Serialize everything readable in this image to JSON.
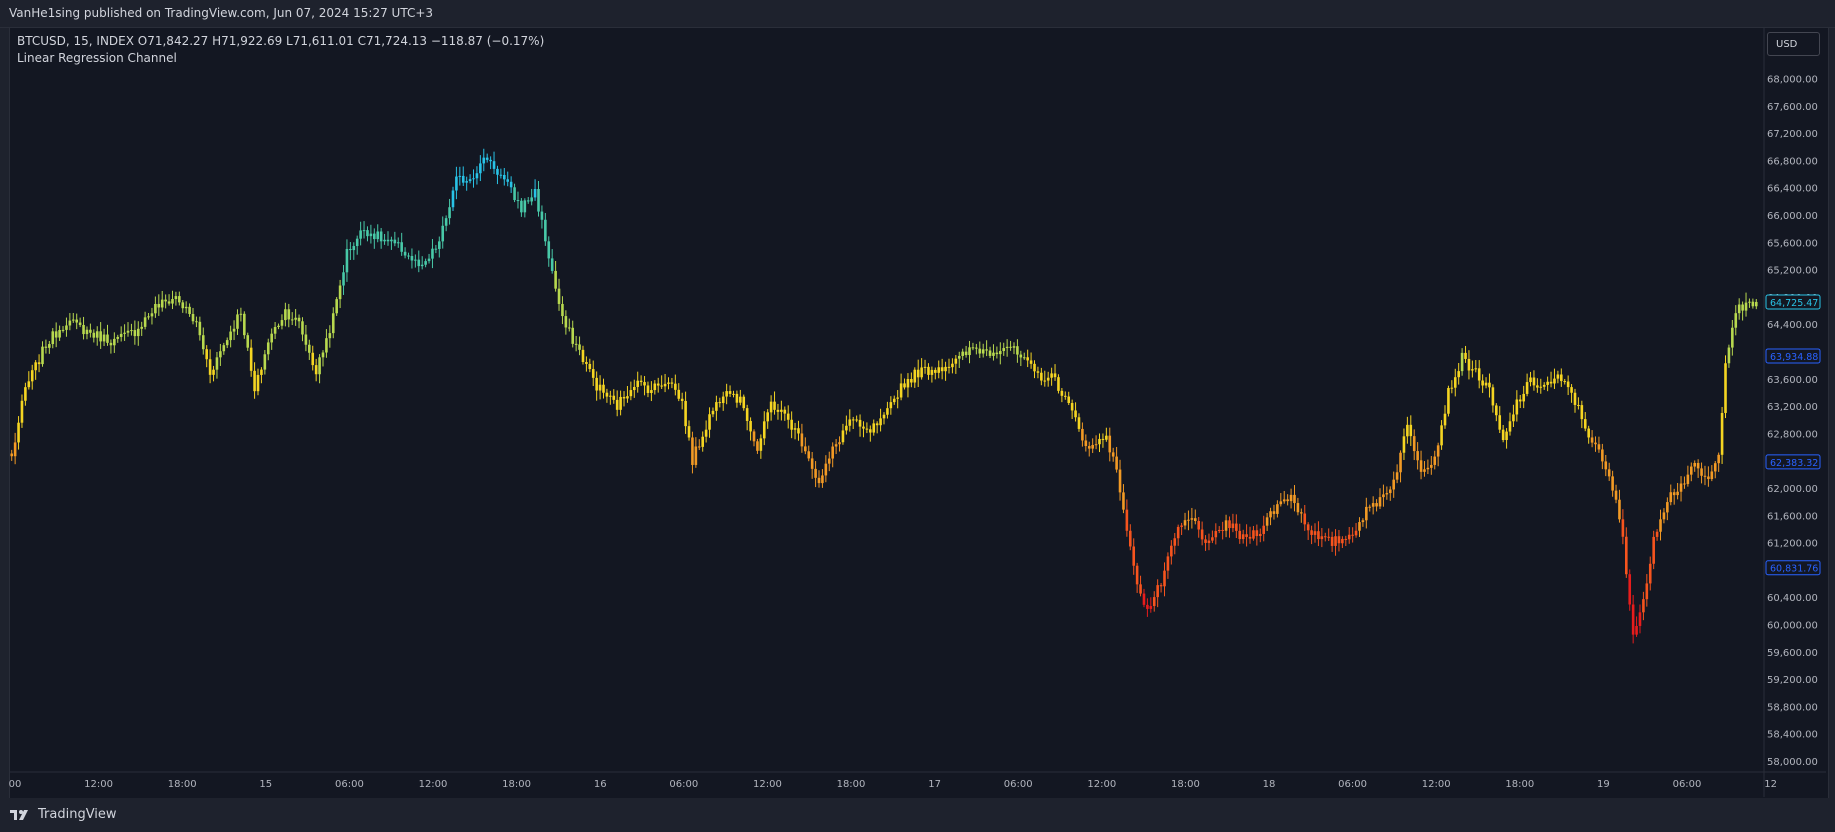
{
  "header": {
    "published_text": "VanHe1sing published on TradingView.com, Jun 07, 2024 15:27 UTC+3"
  },
  "legend": {
    "symbol_line": "BTCUSD, 15, INDEX  O71,842.27  H71,922.69  L71,611.01  C71,724.13  −118.87 (−0.17%)",
    "indicator": "Linear Regression Channel"
  },
  "currency_button": "USD",
  "footer": {
    "brand": "TradingView"
  },
  "colors": {
    "background": "#131722",
    "frame": "#1e222d",
    "text": "#d1d4dc",
    "palette_low_to_high": [
      "#e81c1c",
      "#f7541e",
      "#f29a25",
      "#f5d522",
      "#b8d94f",
      "#48c9a8",
      "#29c3e6"
    ]
  },
  "chart_data": {
    "type": "candlestick",
    "symbol": "BTCUSD",
    "interval": "15",
    "ylim": [
      57800,
      68400
    ],
    "y_ticks": [
      58000,
      58400,
      58800,
      59200,
      59600,
      60000,
      60400,
      60800,
      61200,
      61600,
      62000,
      62400,
      62800,
      63200,
      63600,
      64000,
      64400,
      64800,
      65200,
      65600,
      66000,
      66400,
      66800,
      67200,
      67600,
      68000
    ],
    "x_ticks": [
      "00",
      "12:00",
      "18:00",
      "15",
      "06:00",
      "12:00",
      "18:00",
      "16",
      "06:00",
      "12:00",
      "18:00",
      "17",
      "06:00",
      "12:00",
      "18:00",
      "18",
      "06:00",
      "12:00",
      "18:00",
      "19",
      "06:00",
      "12"
    ],
    "price_labels": [
      {
        "value": "64,725.47",
        "price": 64725.47,
        "color": "#29c3e6"
      },
      {
        "value": "63,934.88",
        "price": 63934.88,
        "color": "#2962ff"
      },
      {
        "value": "62,383.32",
        "price": 62383.32,
        "color": "#2962ff"
      },
      {
        "value": "60,831.76",
        "price": 60831.76,
        "color": "#2962ff"
      }
    ],
    "path": [
      [
        0,
        62450
      ],
      [
        4,
        63450
      ],
      [
        10,
        64100
      ],
      [
        16,
        64450
      ],
      [
        24,
        64250
      ],
      [
        30,
        64150
      ],
      [
        36,
        64300
      ],
      [
        42,
        64650
      ],
      [
        48,
        64800
      ],
      [
        54,
        64400
      ],
      [
        58,
        63700
      ],
      [
        62,
        64100
      ],
      [
        67,
        64600
      ],
      [
        71,
        63400
      ],
      [
        75,
        64150
      ],
      [
        80,
        64600
      ],
      [
        84,
        64400
      ],
      [
        89,
        63700
      ],
      [
        94,
        64500
      ],
      [
        98,
        65450
      ],
      [
        103,
        65800
      ],
      [
        108,
        65650
      ],
      [
        114,
        65500
      ],
      [
        120,
        65200
      ],
      [
        125,
        65600
      ],
      [
        130,
        66500
      ],
      [
        134,
        66550
      ],
      [
        139,
        66850
      ],
      [
        144,
        66500
      ],
      [
        149,
        66100
      ],
      [
        153,
        66350
      ],
      [
        157,
        65400
      ],
      [
        161,
        64450
      ],
      [
        166,
        64000
      ],
      [
        171,
        63500
      ],
      [
        177,
        63200
      ],
      [
        182,
        63550
      ],
      [
        187,
        63450
      ],
      [
        192,
        63600
      ],
      [
        196,
        63250
      ],
      [
        199,
        62400
      ],
      [
        204,
        63050
      ],
      [
        209,
        63500
      ],
      [
        214,
        63200
      ],
      [
        218,
        62550
      ],
      [
        222,
        63250
      ],
      [
        227,
        63000
      ],
      [
        232,
        62600
      ],
      [
        236,
        62050
      ],
      [
        240,
        62550
      ],
      [
        245,
        63000
      ],
      [
        250,
        62800
      ],
      [
        255,
        63000
      ],
      [
        260,
        63500
      ],
      [
        265,
        63700
      ],
      [
        270,
        63750
      ],
      [
        276,
        63850
      ],
      [
        281,
        64050
      ],
      [
        286,
        64000
      ],
      [
        291,
        64100
      ],
      [
        296,
        63850
      ],
      [
        300,
        63650
      ],
      [
        305,
        63600
      ],
      [
        310,
        63100
      ],
      [
        315,
        62550
      ],
      [
        320,
        62800
      ],
      [
        324,
        62000
      ],
      [
        328,
        60800
      ],
      [
        332,
        60200
      ],
      [
        336,
        60600
      ],
      [
        341,
        61400
      ],
      [
        345,
        61550
      ],
      [
        350,
        61150
      ],
      [
        355,
        61500
      ],
      [
        360,
        61250
      ],
      [
        365,
        61400
      ],
      [
        370,
        61750
      ],
      [
        374,
        61900
      ],
      [
        378,
        61500
      ],
      [
        382,
        61250
      ],
      [
        386,
        61200
      ],
      [
        391,
        61300
      ],
      [
        396,
        61650
      ],
      [
        400,
        61850
      ],
      [
        404,
        62100
      ],
      [
        408,
        62900
      ],
      [
        412,
        62300
      ],
      [
        416,
        62450
      ],
      [
        420,
        63400
      ],
      [
        424,
        63900
      ],
      [
        428,
        63700
      ],
      [
        432,
        63400
      ],
      [
        436,
        62650
      ],
      [
        440,
        63250
      ],
      [
        444,
        63550
      ],
      [
        448,
        63500
      ],
      [
        452,
        63600
      ],
      [
        456,
        63400
      ],
      [
        460,
        62900
      ],
      [
        464,
        62500
      ],
      [
        468,
        62000
      ],
      [
        471,
        61300
      ],
      [
        474,
        59850
      ],
      [
        477,
        60300
      ],
      [
        480,
        61300
      ],
      [
        484,
        61850
      ],
      [
        488,
        62050
      ],
      [
        492,
        62300
      ],
      [
        496,
        62100
      ],
      [
        499,
        62450
      ],
      [
        501,
        63900
      ],
      [
        504,
        64600
      ],
      [
        507,
        64650
      ],
      [
        510,
        64700
      ]
    ]
  }
}
